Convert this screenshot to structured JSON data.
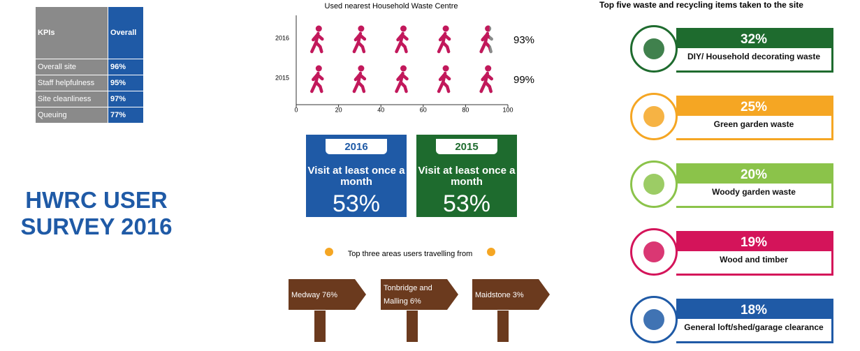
{
  "title_lines": [
    "HWRC USER",
    "SURVEY 2016"
  ],
  "kpi_table": {
    "header": [
      "KPIs",
      "Overall"
    ],
    "rows": [
      [
        "Overall site",
        "96%"
      ],
      [
        "Staff helpfulness",
        "95%"
      ],
      [
        "Site cleanliness",
        "97%"
      ],
      [
        "Queuing",
        "77%"
      ]
    ]
  },
  "usage_chart": {
    "title": "Used nearest Household Waste Centre",
    "xlim": [
      0,
      100
    ],
    "xticks": [
      0,
      20,
      40,
      60,
      80,
      100
    ],
    "icon_color": "#c2185b",
    "rest_color": "#8a8a8a",
    "rows": [
      {
        "label": "2016",
        "value": 93,
        "value_label": "93%"
      },
      {
        "label": "2015",
        "value": 99,
        "value_label": "99%"
      }
    ]
  },
  "visits": [
    {
      "year": "2016",
      "text": "Visit at least once a month",
      "value": "53%",
      "color": "#1f5aa6"
    },
    {
      "year": "2015",
      "text": "Visit at least once a month",
      "value": "53%",
      "color": "#1e6b2e"
    }
  ],
  "areas": {
    "title": "Top three areas users travelling from",
    "signs": [
      "Medway 76%",
      "Tonbridge and Malling 6%",
      "Maidstone 3%"
    ]
  },
  "items": {
    "title": "Top five waste and recycling items taken to the site",
    "list": [
      {
        "percent": "32%",
        "label": "DIY/ Household decorating waste",
        "color": "#1e6b2e"
      },
      {
        "percent": "25%",
        "label": "Green garden waste",
        "color": "#f5a623"
      },
      {
        "percent": "20%",
        "label": "Woody garden waste",
        "color": "#8bc34a"
      },
      {
        "percent": "19%",
        "label": "Wood and timber",
        "color": "#d4145a"
      },
      {
        "percent": "18%",
        "label": "General loft/shed/garage clearance",
        "color": "#1f5aa6"
      }
    ]
  }
}
